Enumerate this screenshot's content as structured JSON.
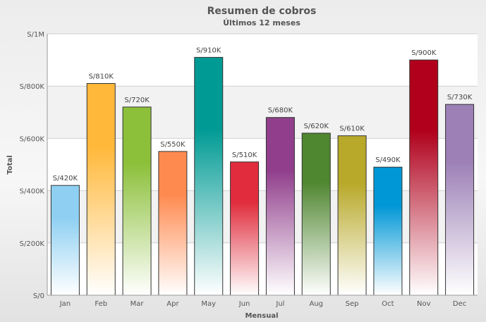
{
  "chart_data": {
    "type": "bar",
    "title": "Resumen de cobros",
    "subtitle": "Últimos 12 meses",
    "xlabel": "Mensual",
    "ylabel": "Total",
    "categories": [
      "Jan",
      "Feb",
      "Mar",
      "Apr",
      "May",
      "Jun",
      "Jul",
      "Aug",
      "Sep",
      "Oct",
      "Nov",
      "Dec"
    ],
    "values": [
      420000,
      810000,
      720000,
      550000,
      910000,
      510000,
      680000,
      620000,
      610000,
      490000,
      900000,
      730000
    ],
    "data_labels": [
      "S/420K",
      "S/810K",
      "S/720K",
      "S/550K",
      "S/910K",
      "S/510K",
      "S/680K",
      "S/620K",
      "S/610K",
      "S/490K",
      "S/900K",
      "S/730K"
    ],
    "ylim": [
      0,
      1000000
    ],
    "yticks": [
      0,
      200000,
      400000,
      600000,
      800000,
      1000000
    ],
    "ytick_labels": [
      "S/0",
      "S/200K",
      "S/400K",
      "S/600K",
      "S/800K",
      "S/1M"
    ],
    "grid": true,
    "legend": "none",
    "colors": [
      "#8fd0f2",
      "#ffb83a",
      "#8cc03a",
      "#ff8a50",
      "#009a94",
      "#e02c3c",
      "#913f8c",
      "#4f8630",
      "#b8a92a",
      "#0097d6",
      "#b0001c",
      "#9c80b6"
    ]
  }
}
